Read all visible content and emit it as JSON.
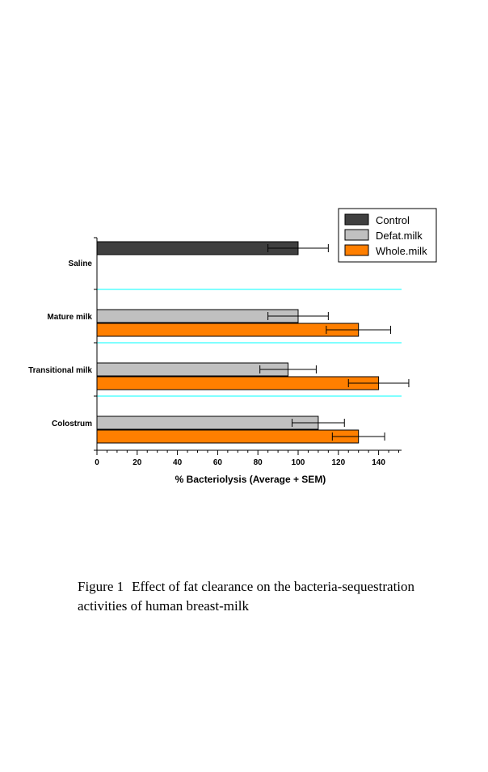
{
  "chart_data": {
    "type": "bar",
    "orientation": "horizontal",
    "categories": [
      "Saline",
      "Mature milk",
      "Transitional milk",
      "Colostrum"
    ],
    "series": [
      {
        "name": "Control",
        "color": "#3f3f3f",
        "values": [
          100,
          null,
          null,
          null
        ],
        "errors": [
          15,
          null,
          null,
          null
        ]
      },
      {
        "name": "Defat.milk",
        "color": "#c0c0c0",
        "values": [
          null,
          100,
          95,
          110
        ],
        "errors": [
          null,
          15,
          14,
          13
        ]
      },
      {
        "name": "Whole.milk",
        "color": "#ff7f00",
        "values": [
          null,
          130,
          140,
          130
        ],
        "errors": [
          null,
          16,
          15,
          13
        ]
      }
    ],
    "xlabel": "% Bacteriolysis (Average + SEM)",
    "ylabel": "",
    "xlim": [
      0,
      150
    ],
    "xticks": [
      0,
      20,
      40,
      60,
      80,
      100,
      120,
      140
    ],
    "legend_position": "top-right",
    "separator_color": "#00ffff"
  },
  "caption": {
    "label": "Figure 1",
    "text": "Effect of fat clearance on the bacteria-sequestration activities of human breast-milk"
  }
}
